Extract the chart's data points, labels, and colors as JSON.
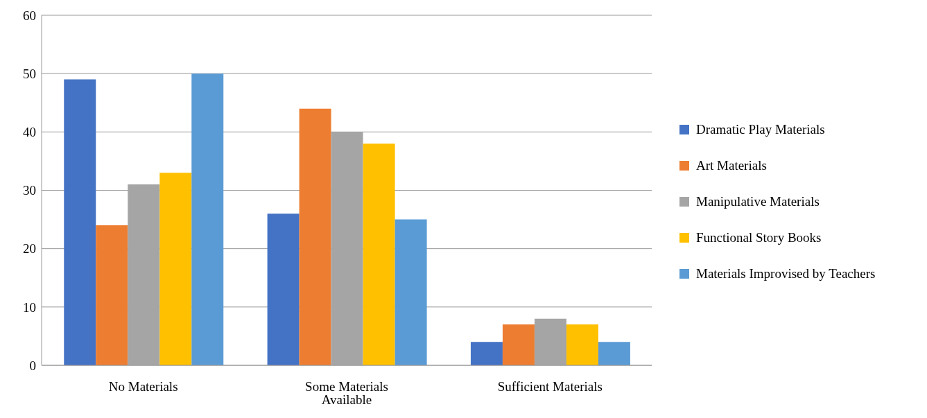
{
  "chart_data": {
    "type": "bar",
    "categories": [
      "No Materials",
      "Some Materials Available",
      "Sufficient Materials"
    ],
    "series": [
      {
        "name": "Dramatic Play Materials",
        "color": "#4472c4",
        "values": [
          49,
          26,
          4
        ]
      },
      {
        "name": "Art Materials",
        "color": "#ed7d31",
        "values": [
          24,
          44,
          7
        ]
      },
      {
        "name": "Manipulative Materials",
        "color": "#a5a5a5",
        "values": [
          31,
          40,
          8
        ]
      },
      {
        "name": "Functional Story Books",
        "color": "#ffc000",
        "values": [
          33,
          38,
          7
        ]
      },
      {
        "name": "Materials Improvised by Teachers",
        "color": "#5b9bd5",
        "values": [
          50,
          25,
          4
        ]
      }
    ],
    "ylim": [
      0,
      60
    ],
    "yticks": [
      0,
      10,
      20,
      30,
      40,
      50,
      60
    ],
    "grid": "y",
    "legend": "right"
  }
}
